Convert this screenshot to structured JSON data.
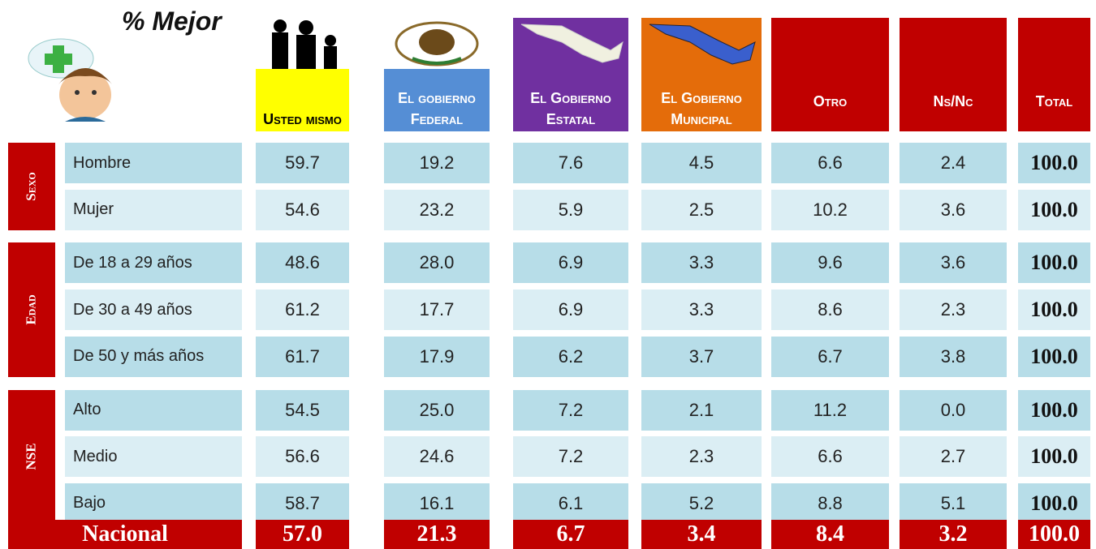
{
  "title": "% Mejor",
  "columns": [
    "Usted mismo",
    "El gobierno Federal",
    "El Gobierno Estatal",
    "El Gobierno Municipal",
    "Otro",
    "Ns/Nc",
    "Total"
  ],
  "groups": [
    {
      "label": "Sexo",
      "rows": [
        {
          "label": "Hombre",
          "values": [
            "59.7",
            "19.2",
            "7.6",
            "4.5",
            "6.6",
            "2.4",
            "100.0"
          ]
        },
        {
          "label": "Mujer",
          "values": [
            "54.6",
            "23.2",
            "5.9",
            "2.5",
            "10.2",
            "3.6",
            "100.0"
          ]
        }
      ]
    },
    {
      "label": "Edad",
      "rows": [
        {
          "label": "De 18 a 29 años",
          "values": [
            "48.6",
            "28.0",
            "6.9",
            "3.3",
            "9.6",
            "3.6",
            "100.0"
          ]
        },
        {
          "label": "De 30 a 49 años",
          "values": [
            "61.2",
            "17.7",
            "6.9",
            "3.3",
            "8.6",
            "2.3",
            "100.0"
          ]
        },
        {
          "label": "De 50 y más años",
          "values": [
            "61.7",
            "17.9",
            "6.2",
            "3.7",
            "6.7",
            "3.8",
            "100.0"
          ]
        }
      ]
    },
    {
      "label": "NSE",
      "rows": [
        {
          "label": "Alto",
          "values": [
            "54.5",
            "25.0",
            "7.2",
            "2.1",
            "11.2",
            "0.0",
            "100.0"
          ]
        },
        {
          "label": "Medio",
          "values": [
            "56.6",
            "24.6",
            "7.2",
            "2.3",
            "6.6",
            "2.7",
            "100.0"
          ]
        },
        {
          "label": "Bajo",
          "values": [
            "58.7",
            "16.1",
            "6.1",
            "5.2",
            "8.8",
            "5.1",
            "100.0"
          ]
        }
      ]
    }
  ],
  "total": {
    "label": "Nacional",
    "values": [
      "57.0",
      "21.3",
      "6.7",
      "3.4",
      "8.4",
      "3.2",
      "100.0"
    ]
  }
}
